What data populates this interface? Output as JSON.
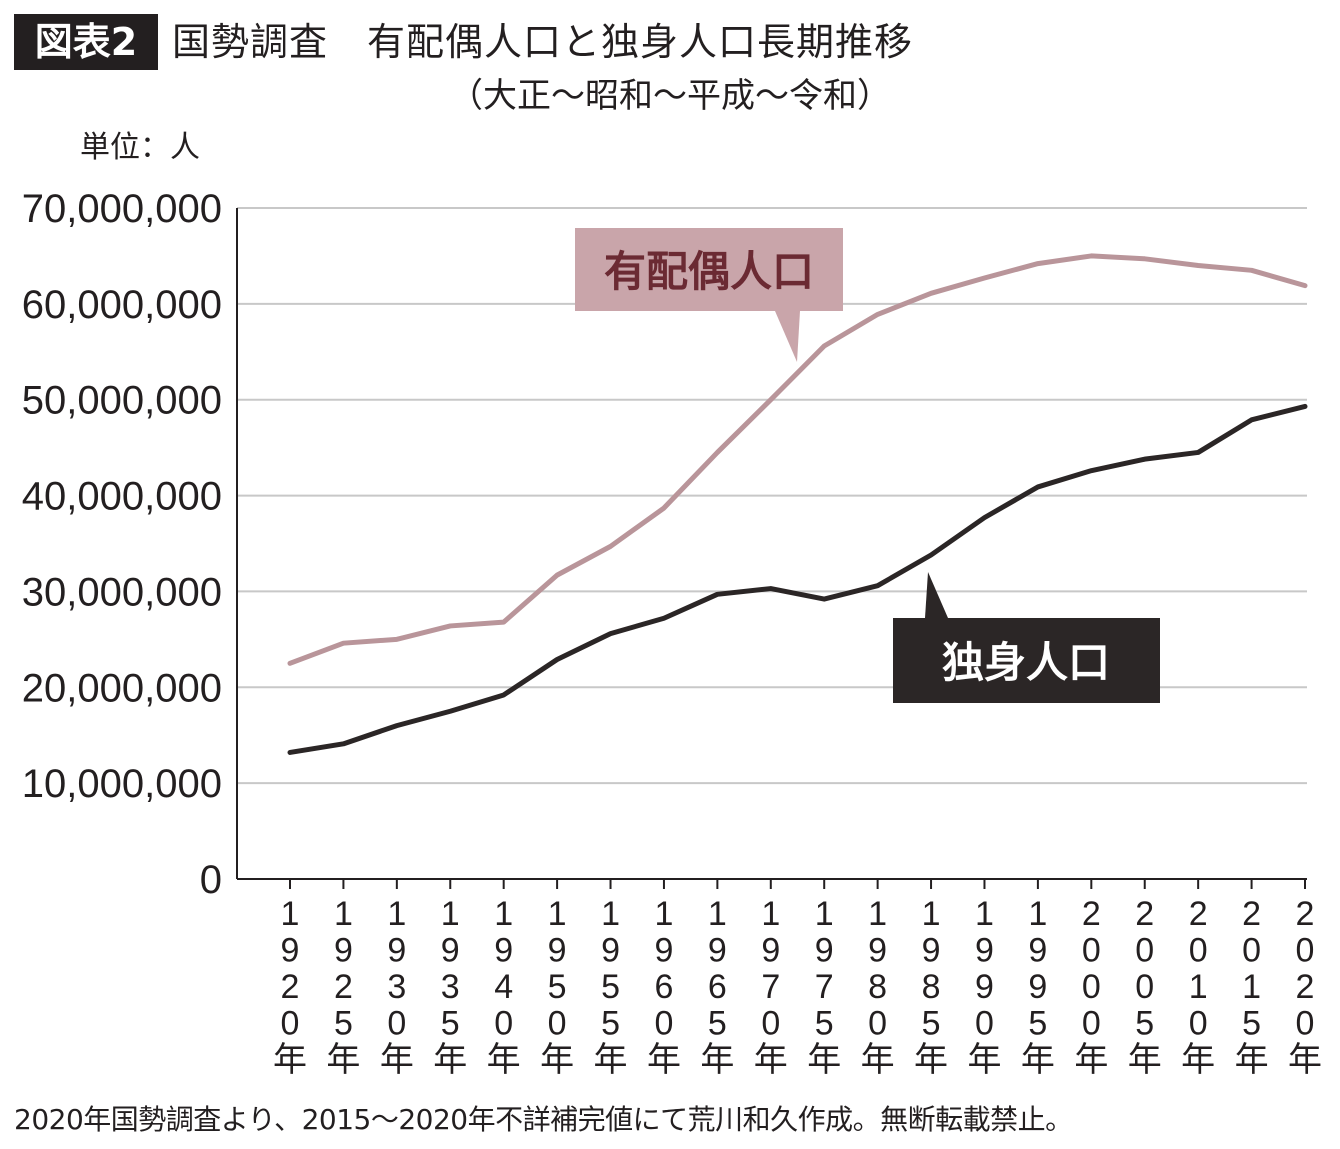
{
  "header": {
    "badge": "図表2",
    "title": "国勢調査　有配偶人口と独身人口長期推移",
    "subtitle": "（大正～昭和～平成～令和）",
    "unit": "単位：人"
  },
  "footnote": "2020年国勢調査より、2015～2020年不詳補完値にて荒川和久作成。無断転載禁止。",
  "chart_data": {
    "type": "line",
    "title": "国勢調査　有配偶人口と独身人口長期推移",
    "xlabel": "",
    "ylabel": "単位：人",
    "ylim": [
      0,
      70000000
    ],
    "yticks": [
      0,
      10000000,
      20000000,
      30000000,
      40000000,
      50000000,
      60000000,
      70000000
    ],
    "ytick_labels": [
      "0",
      "10,000,000",
      "20,000,000",
      "30,000,000",
      "40,000,000",
      "50,000,000",
      "60,000,000",
      "70,000,000"
    ],
    "grid": true,
    "legend": "inline-callouts",
    "categories": [
      "1920",
      "1925",
      "1930",
      "1935",
      "1940",
      "1950",
      "1955",
      "1960",
      "1965",
      "1970",
      "1975",
      "1980",
      "1985",
      "1990",
      "1995",
      "2000",
      "2005",
      "2010",
      "2015",
      "2020"
    ],
    "category_suffix": "年",
    "series": [
      {
        "name": "有配偶人口",
        "color": "#b9959a",
        "label_bg": "#c9a5aa",
        "label_color": "#6b2a33",
        "values": [
          22500000,
          24600000,
          25000000,
          26400000,
          26800000,
          31700000,
          34700000,
          38700000,
          44500000,
          50000000,
          55600000,
          58900000,
          61100000,
          62700000,
          64200000,
          65000000,
          64700000,
          64000000,
          63500000,
          61900000
        ]
      },
      {
        "name": "独身人口",
        "color": "#2b2626",
        "label_bg": "#2b2626",
        "label_color": "#ffffff",
        "values": [
          13200000,
          14100000,
          16000000,
          17500000,
          19200000,
          22900000,
          25600000,
          27200000,
          29700000,
          30300000,
          29200000,
          30600000,
          33800000,
          37700000,
          40900000,
          42600000,
          43800000,
          44500000,
          47900000,
          49300000
        ]
      }
    ]
  }
}
